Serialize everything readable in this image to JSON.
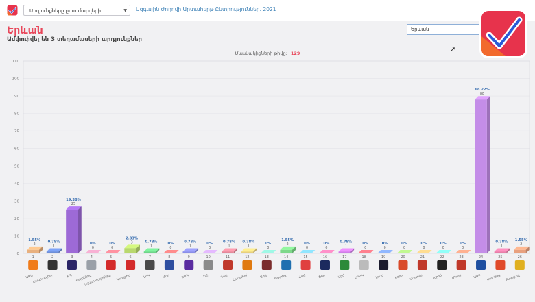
{
  "header": {
    "selector_value": "Արդյունքները ըստ մարզերի",
    "site_title": "Ազգային Ժողովի Արտահերթ Ընտրություններ. 2021",
    "search_value": "Երևան",
    "logo_icon": "checkmark-badge-icon",
    "brand_colors": {
      "red": "#e7334c",
      "orange": "#f26a2d",
      "blue": "#2a5bd7"
    }
  },
  "region": {
    "title": "Երևան",
    "subtitle": "Ամփոփվել են 3 տեղամասերի արդյունքներ"
  },
  "chart_data": {
    "type": "bar",
    "title": "Մասնակիցների թիվը:",
    "title_value": "129",
    "ylim": [
      0,
      110
    ],
    "yticks": [
      0,
      10,
      20,
      30,
      40,
      50,
      60,
      70,
      80,
      90,
      100,
      110
    ],
    "grid": true,
    "categories": [
      "1",
      "2",
      "3",
      "4",
      "5",
      "6",
      "7",
      "8",
      "9",
      "10",
      "11",
      "12",
      "13",
      "14",
      "15",
      "16",
      "17",
      "18",
      "19",
      "20",
      "21",
      "22",
      "23",
      "24",
      "25",
      "26"
    ],
    "values": [
      2,
      1,
      25,
      0,
      0,
      3,
      1,
      0,
      1,
      0,
      1,
      1,
      0,
      2,
      0,
      0,
      1,
      0,
      0,
      0,
      0,
      0,
      0,
      88,
      1,
      2
    ],
    "percent_labels": [
      "1.55%",
      "0.78%",
      "19.38%",
      "0%",
      "0%",
      "2.33%",
      "0.78%",
      "0%",
      "0.78%",
      "0%",
      "0.78%",
      "0.78%",
      "0%",
      "1.55%",
      "0%",
      "0%",
      "0.78%",
      "0%",
      "0%",
      "0%",
      "0%",
      "0%",
      "0%",
      "68.22%",
      "0.78%",
      "1.55%"
    ],
    "party_names": [
      "ԱԱԱ",
      "Հանրապետ",
      "ՔՊ",
      "Հայրենիք",
      "Ազատ Հայրենիք",
      "Կոնգրես",
      "ԼՀԿ",
      "Հայ",
      "ԵՄԿ",
      "ՄՀ",
      "Դաշ",
      "Համախմ",
      "Ազգ",
      "Պատիվ",
      "ՀԺՀ",
      "Ֆոր",
      "Արժ",
      "ՍԴՀԿ",
      "Լույս",
      "Հզոր",
      "Սասուն",
      "Խիղճ",
      "Միաս",
      "ԱԱԲ",
      "Հայ Ազգ",
      "Բարգավ"
    ],
    "bar_colors": [
      "#e8b07e",
      "#6e8fd8",
      "#9d6ad6",
      "#d89ab8",
      "#f07f8c",
      "#b9d86e",
      "#6fd48a",
      "#f27a7a",
      "#8a8ee8",
      "#c7a2e0",
      "#e5899a",
      "#e8d07e",
      "#8ad8c8",
      "#7ed88a",
      "#7ec8e8",
      "#e87eb0",
      "#d07ee8",
      "#e8707c",
      "#7ea0e8",
      "#a8d87e",
      "#e8c07e",
      "#7ee8d8",
      "#e89a7e",
      "#c48de8",
      "#e87ea8",
      "#e8a07e"
    ],
    "logo_colors": [
      "#f07c1b",
      "#333333",
      "#2b2566",
      "#9aa0a8",
      "#d42b2b",
      "#d42b2b",
      "#4a4a4a",
      "#2f4fa0",
      "#5a2ca0",
      "#8a8a8a",
      "#c0392b",
      "#e07a10",
      "#7b2d2d",
      "#1f6fb0",
      "#e04040",
      "#1c2a5e",
      "#2c8a3a",
      "#bbbbbb",
      "#1c1c2e",
      "#d94a2a",
      "#c0392b",
      "#222222",
      "#c0392b",
      "#1f4fa0",
      "#e04a2a",
      "#e0b020"
    ]
  }
}
